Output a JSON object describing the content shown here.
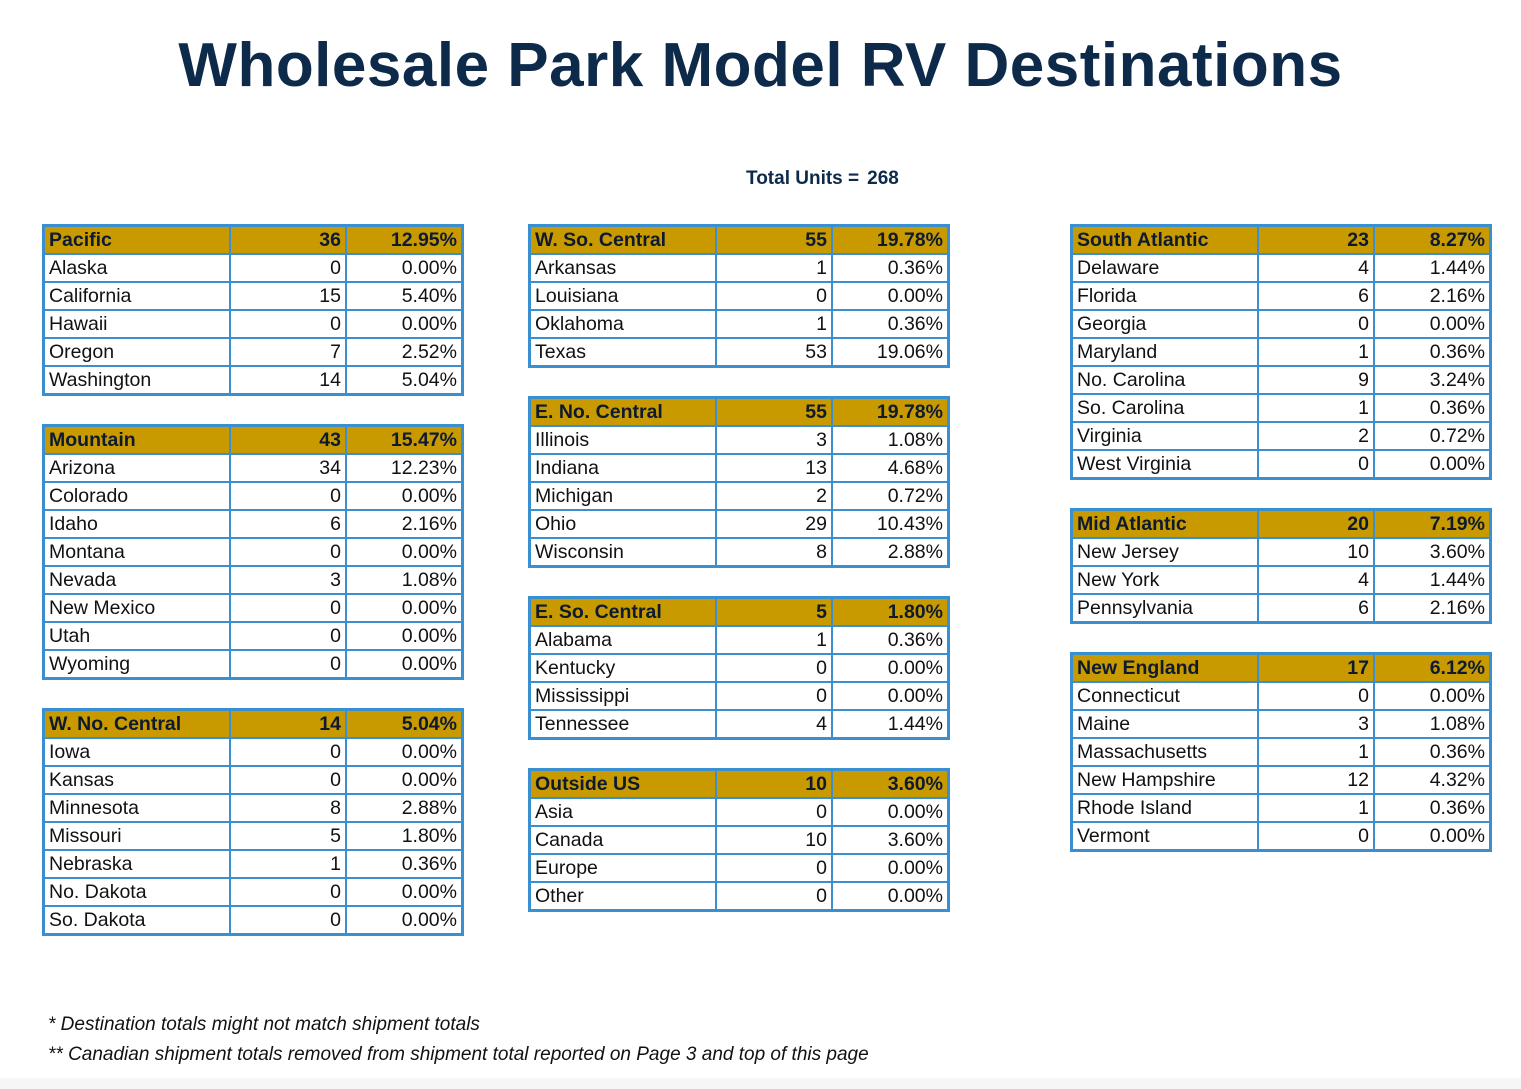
{
  "title": "Wholesale Park Model RV Destinations",
  "total": {
    "label": "Total Units =",
    "value": "268"
  },
  "columns": [
    [
      {
        "name": "Pacific",
        "units": "36",
        "pct": "12.95%",
        "states": [
          {
            "name": "Alaska",
            "units": "0",
            "pct": "0.00%"
          },
          {
            "name": "California",
            "units": "15",
            "pct": "5.40%"
          },
          {
            "name": "Hawaii",
            "units": "0",
            "pct": "0.00%"
          },
          {
            "name": "Oregon",
            "units": "7",
            "pct": "2.52%"
          },
          {
            "name": "Washington",
            "units": "14",
            "pct": "5.04%"
          }
        ]
      },
      {
        "name": "Mountain",
        "units": "43",
        "pct": "15.47%",
        "states": [
          {
            "name": "Arizona",
            "units": "34",
            "pct": "12.23%"
          },
          {
            "name": "Colorado",
            "units": "0",
            "pct": "0.00%"
          },
          {
            "name": "Idaho",
            "units": "6",
            "pct": "2.16%"
          },
          {
            "name": "Montana",
            "units": "0",
            "pct": "0.00%"
          },
          {
            "name": "Nevada",
            "units": "3",
            "pct": "1.08%"
          },
          {
            "name": "New Mexico",
            "units": "0",
            "pct": "0.00%"
          },
          {
            "name": "Utah",
            "units": "0",
            "pct": "0.00%"
          },
          {
            "name": "Wyoming",
            "units": "0",
            "pct": "0.00%"
          }
        ]
      },
      {
        "name": "W. No. Central",
        "units": "14",
        "pct": "5.04%",
        "states": [
          {
            "name": "Iowa",
            "units": "0",
            "pct": "0.00%"
          },
          {
            "name": "Kansas",
            "units": "0",
            "pct": "0.00%"
          },
          {
            "name": "Minnesota",
            "units": "8",
            "pct": "2.88%"
          },
          {
            "name": "Missouri",
            "units": "5",
            "pct": "1.80%"
          },
          {
            "name": "Nebraska",
            "units": "1",
            "pct": "0.36%"
          },
          {
            "name": "No. Dakota",
            "units": "0",
            "pct": "0.00%"
          },
          {
            "name": "So. Dakota",
            "units": "0",
            "pct": "0.00%"
          }
        ]
      }
    ],
    [
      {
        "name": "W. So. Central",
        "units": "55",
        "pct": "19.78%",
        "states": [
          {
            "name": "Arkansas",
            "units": "1",
            "pct": "0.36%"
          },
          {
            "name": "Louisiana",
            "units": "0",
            "pct": "0.00%"
          },
          {
            "name": "Oklahoma",
            "units": "1",
            "pct": "0.36%"
          },
          {
            "name": "Texas",
            "units": "53",
            "pct": "19.06%"
          }
        ]
      },
      {
        "name": "E. No. Central",
        "units": "55",
        "pct": "19.78%",
        "states": [
          {
            "name": "Illinois",
            "units": "3",
            "pct": "1.08%"
          },
          {
            "name": "Indiana",
            "units": "13",
            "pct": "4.68%"
          },
          {
            "name": "Michigan",
            "units": "2",
            "pct": "0.72%"
          },
          {
            "name": "Ohio",
            "units": "29",
            "pct": "10.43%"
          },
          {
            "name": "Wisconsin",
            "units": "8",
            "pct": "2.88%"
          }
        ]
      },
      {
        "name": "E. So. Central",
        "units": "5",
        "pct": "1.80%",
        "states": [
          {
            "name": "Alabama",
            "units": "1",
            "pct": "0.36%"
          },
          {
            "name": "Kentucky",
            "units": "0",
            "pct": "0.00%"
          },
          {
            "name": "Mississippi",
            "units": "0",
            "pct": "0.00%"
          },
          {
            "name": "Tennessee",
            "units": "4",
            "pct": "1.44%"
          }
        ]
      },
      {
        "name": "Outside US",
        "units": "10",
        "pct": "3.60%",
        "states": [
          {
            "name": "Asia",
            "units": "0",
            "pct": "0.00%"
          },
          {
            "name": "Canada",
            "units": "10",
            "pct": "3.60%"
          },
          {
            "name": "Europe",
            "units": "0",
            "pct": "0.00%"
          },
          {
            "name": "Other",
            "units": "0",
            "pct": "0.00%"
          }
        ]
      }
    ],
    [
      {
        "name": "South Atlantic",
        "units": "23",
        "pct": "8.27%",
        "states": [
          {
            "name": "Delaware",
            "units": "4",
            "pct": "1.44%"
          },
          {
            "name": "Florida",
            "units": "6",
            "pct": "2.16%"
          },
          {
            "name": "Georgia",
            "units": "0",
            "pct": "0.00%"
          },
          {
            "name": "Maryland",
            "units": "1",
            "pct": "0.36%"
          },
          {
            "name": "No. Carolina",
            "units": "9",
            "pct": "3.24%"
          },
          {
            "name": "So. Carolina",
            "units": "1",
            "pct": "0.36%"
          },
          {
            "name": "Virginia",
            "units": "2",
            "pct": "0.72%"
          },
          {
            "name": "West Virginia",
            "units": "0",
            "pct": "0.00%"
          }
        ]
      },
      {
        "name": "Mid Atlantic",
        "units": "20",
        "pct": "7.19%",
        "states": [
          {
            "name": "New Jersey",
            "units": "10",
            "pct": "3.60%"
          },
          {
            "name": "New York",
            "units": "4",
            "pct": "1.44%"
          },
          {
            "name": "Pennsylvania",
            "units": "6",
            "pct": "2.16%"
          }
        ]
      },
      {
        "name": "New England",
        "units": "17",
        "pct": "6.12%",
        "states": [
          {
            "name": "Connecticut",
            "units": "0",
            "pct": "0.00%"
          },
          {
            "name": "Maine",
            "units": "3",
            "pct": "1.08%"
          },
          {
            "name": "Massachusetts",
            "units": "1",
            "pct": "0.36%"
          },
          {
            "name": "New Hampshire",
            "units": "12",
            "pct": "4.32%"
          },
          {
            "name": "Rhode Island",
            "units": "1",
            "pct": "0.36%"
          },
          {
            "name": "Vermont",
            "units": "0",
            "pct": "0.00%"
          }
        ]
      }
    ]
  ],
  "notes": [
    "* Destination totals might not match shipment totals",
    "** Canadian shipment totals removed from shipment total reported on Page 3 and top of this page"
  ],
  "colors": {
    "header_fill": "#c89a00",
    "border": "#3a8fd0",
    "title": "#0d2a4a"
  }
}
